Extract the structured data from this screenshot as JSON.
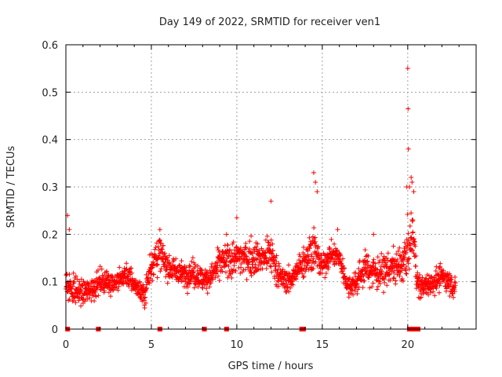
{
  "chart_data": {
    "type": "scatter",
    "title": "Day 149 of 2022, SRMTID for receiver ven1",
    "xlabel": "GPS time / hours",
    "ylabel": "SRMTID / TECUs",
    "xlim": [
      0,
      24
    ],
    "ylim": [
      0,
      0.6
    ],
    "xticks": [
      0,
      5,
      10,
      15,
      20
    ],
    "yticks": [
      0,
      0.1,
      0.2,
      0.3,
      0.4,
      0.5,
      0.6
    ],
    "ytick_labels": [
      "0",
      "0.1",
      "0.2",
      "0.3",
      "0.4",
      "0.5",
      "0.6"
    ],
    "grid": true,
    "marker": "plus",
    "color": "#ff0000",
    "series": [
      {
        "name": "SRMTID",
        "trend_profile": [
          [
            0.0,
            0.1,
            0.025
          ],
          [
            0.3,
            0.085,
            0.025
          ],
          [
            1.0,
            0.075,
            0.02
          ],
          [
            1.5,
            0.085,
            0.02
          ],
          [
            2.0,
            0.1,
            0.02
          ],
          [
            3.0,
            0.1,
            0.02
          ],
          [
            3.5,
            0.115,
            0.02
          ],
          [
            4.0,
            0.095,
            0.02
          ],
          [
            4.6,
            0.07,
            0.02
          ],
          [
            5.0,
            0.14,
            0.03
          ],
          [
            5.5,
            0.16,
            0.03
          ],
          [
            6.0,
            0.13,
            0.02
          ],
          [
            6.8,
            0.115,
            0.02
          ],
          [
            7.5,
            0.12,
            0.025
          ],
          [
            8.0,
            0.105,
            0.02
          ],
          [
            8.5,
            0.11,
            0.02
          ],
          [
            9.0,
            0.14,
            0.03
          ],
          [
            10.0,
            0.15,
            0.03
          ],
          [
            11.0,
            0.15,
            0.03
          ],
          [
            11.5,
            0.15,
            0.03
          ],
          [
            12.0,
            0.16,
            0.04
          ],
          [
            12.5,
            0.11,
            0.02
          ],
          [
            13.0,
            0.1,
            0.02
          ],
          [
            13.5,
            0.12,
            0.02
          ],
          [
            14.0,
            0.15,
            0.03
          ],
          [
            14.5,
            0.17,
            0.04
          ],
          [
            15.0,
            0.13,
            0.02
          ],
          [
            15.5,
            0.16,
            0.02
          ],
          [
            16.0,
            0.15,
            0.02
          ],
          [
            16.5,
            0.09,
            0.02
          ],
          [
            17.0,
            0.1,
            0.02
          ],
          [
            17.5,
            0.13,
            0.03
          ],
          [
            18.0,
            0.12,
            0.03
          ],
          [
            18.5,
            0.12,
            0.025
          ],
          [
            19.0,
            0.13,
            0.03
          ],
          [
            19.5,
            0.13,
            0.03
          ],
          [
            19.9,
            0.15,
            0.04
          ],
          [
            20.3,
            0.2,
            0.04
          ],
          [
            20.6,
            0.09,
            0.02
          ],
          [
            21.0,
            0.09,
            0.02
          ],
          [
            21.5,
            0.1,
            0.02
          ],
          [
            22.0,
            0.11,
            0.02
          ],
          [
            22.5,
            0.1,
            0.02
          ],
          [
            22.8,
            0.08,
            0.02
          ]
        ],
        "spikes": [
          [
            0.1,
            0.24
          ],
          [
            0.2,
            0.21
          ],
          [
            14.5,
            0.33
          ],
          [
            14.6,
            0.31
          ],
          [
            14.7,
            0.29
          ],
          [
            12.0,
            0.27
          ],
          [
            10.0,
            0.235
          ],
          [
            20.0,
            0.55
          ],
          [
            20.02,
            0.465
          ],
          [
            20.04,
            0.38
          ],
          [
            20.1,
            0.3
          ],
          [
            20.2,
            0.32
          ],
          [
            20.25,
            0.31
          ],
          [
            20.3,
            0.23
          ],
          [
            20.35,
            0.29
          ],
          [
            19.95,
            0.3
          ],
          [
            5.5,
            0.21
          ],
          [
            9.4,
            0.2
          ],
          [
            15.9,
            0.21
          ],
          [
            18.0,
            0.2
          ]
        ],
        "zeros": [
          0.1,
          1.9,
          5.5,
          8.1,
          9.4,
          13.8,
          13.9,
          20.1,
          20.3,
          20.5,
          20.6
        ]
      }
    ]
  }
}
